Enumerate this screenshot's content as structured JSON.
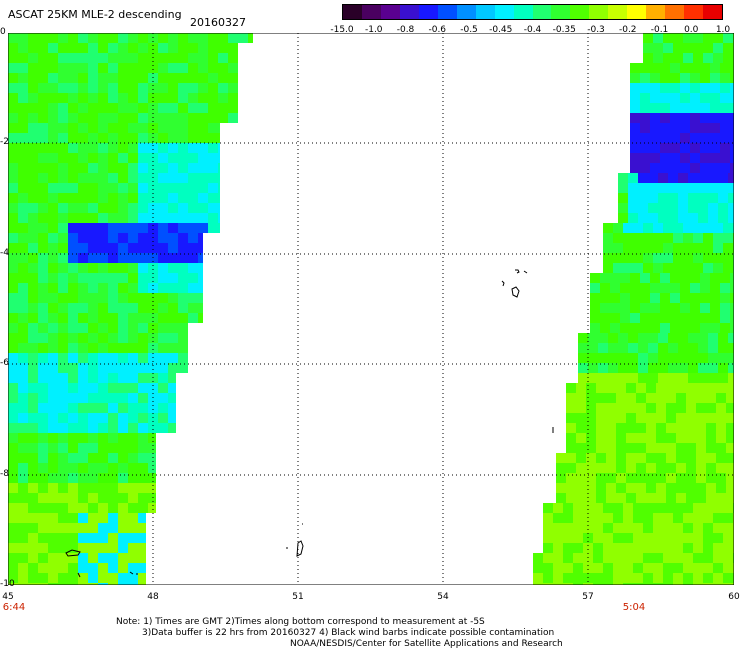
{
  "header": {
    "title": "ASCAT 25KM MLE-2 descending",
    "date": "20160327"
  },
  "colorbar": {
    "labels": [
      "-15.0",
      "-1.0",
      "-0.8",
      "-0.6",
      "-0.5",
      "-0.45",
      "-0.4",
      "-0.35",
      "-0.3",
      "-0.2",
      "-0.1",
      "0.0",
      "1.0"
    ],
    "colors": [
      "#2a0028",
      "#5a0080",
      "#3a10d0",
      "#1010ff",
      "#0070ff",
      "#00c8ff",
      "#00ffe0",
      "#20ff70",
      "#40ff00",
      "#b0ff00",
      "#ffff00",
      "#ff8800",
      "#ff2200"
    ]
  },
  "axes": {
    "y_ticks": [
      "0",
      "-2",
      "-4",
      "-6",
      "-8",
      "-10"
    ],
    "x_ticks": [
      "45",
      "48",
      "51",
      "54",
      "57",
      "60"
    ]
  },
  "times": {
    "left": "6:44",
    "right": "5:04"
  },
  "notes": {
    "line1": "Note: 1) Times are GMT 2)Times along bottom correspond to measurement at -5S",
    "line2": "3)Data buffer is 22 hrs from 20160327 4) Black wind barbs indicate possible contamination",
    "line3": "NOAA/NESDIS/Center for Satellite Applications and Research"
  }
}
